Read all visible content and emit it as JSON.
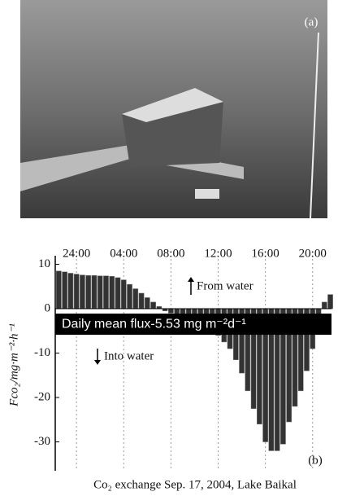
{
  "photo_label": "(a)",
  "chart_data": {
    "type": "bar",
    "panel_label": "(b)",
    "ylabel": "Fco₂/mg·m⁻²·h⁻¹",
    "caption": "Co₂ exchange Sep. 17, 2004, Lake Baikal",
    "annotations": [
      "From water",
      "Into water",
      "Daily mean flux-5.53 mg m⁻²d⁻¹"
    ],
    "color": "#333333",
    "x": [
      22.5,
      23,
      23.5,
      24,
      24.5,
      25,
      25.5,
      26,
      26.5,
      27,
      27.5,
      28,
      28.5,
      29,
      29.5,
      30,
      30.5,
      31,
      31.5,
      32,
      32.5,
      33,
      33.5,
      34,
      34.5,
      35,
      35.5,
      36,
      36.5,
      37,
      37.5,
      38,
      38.5,
      39,
      39.5,
      40,
      40.5,
      41,
      41.5,
      42,
      42.5,
      43,
      43.5,
      44,
      44.5,
      45,
      45.5
    ],
    "values": [
      8.5,
      8.3,
      8.0,
      7.8,
      7.6,
      7.5,
      7.5,
      7.4,
      7.4,
      7.3,
      7.0,
      6.5,
      5.5,
      4.5,
      3.5,
      2.5,
      1.5,
      0.5,
      -0.5,
      -1.0,
      -1.5,
      -1.8,
      -2.2,
      -2.5,
      -3.0,
      -3.5,
      -4.5,
      -6.0,
      -7.5,
      -9.0,
      -11.5,
      -14.5,
      -18.5,
      -22.5,
      -26.0,
      -30.0,
      -32.0,
      -32.0,
      -30.5,
      -25.5,
      -22.0,
      -18.5,
      -14.0,
      -9.0,
      -4.0,
      1.5,
      3.2
    ],
    "xlim": [
      22.2,
      45.6
    ],
    "xticks": [
      {
        "value": 24,
        "label": "24:00"
      },
      {
        "value": 28,
        "label": "04:00"
      },
      {
        "value": 32,
        "label": "08:00"
      },
      {
        "value": 36,
        "label": "12:00"
      },
      {
        "value": 40,
        "label": "16:00"
      },
      {
        "value": 44,
        "label": "20:00"
      }
    ],
    "ylim": [
      -36.5,
      11.2
    ],
    "yticks": [
      10,
      0,
      -10,
      -20,
      -30
    ],
    "grid": true
  }
}
